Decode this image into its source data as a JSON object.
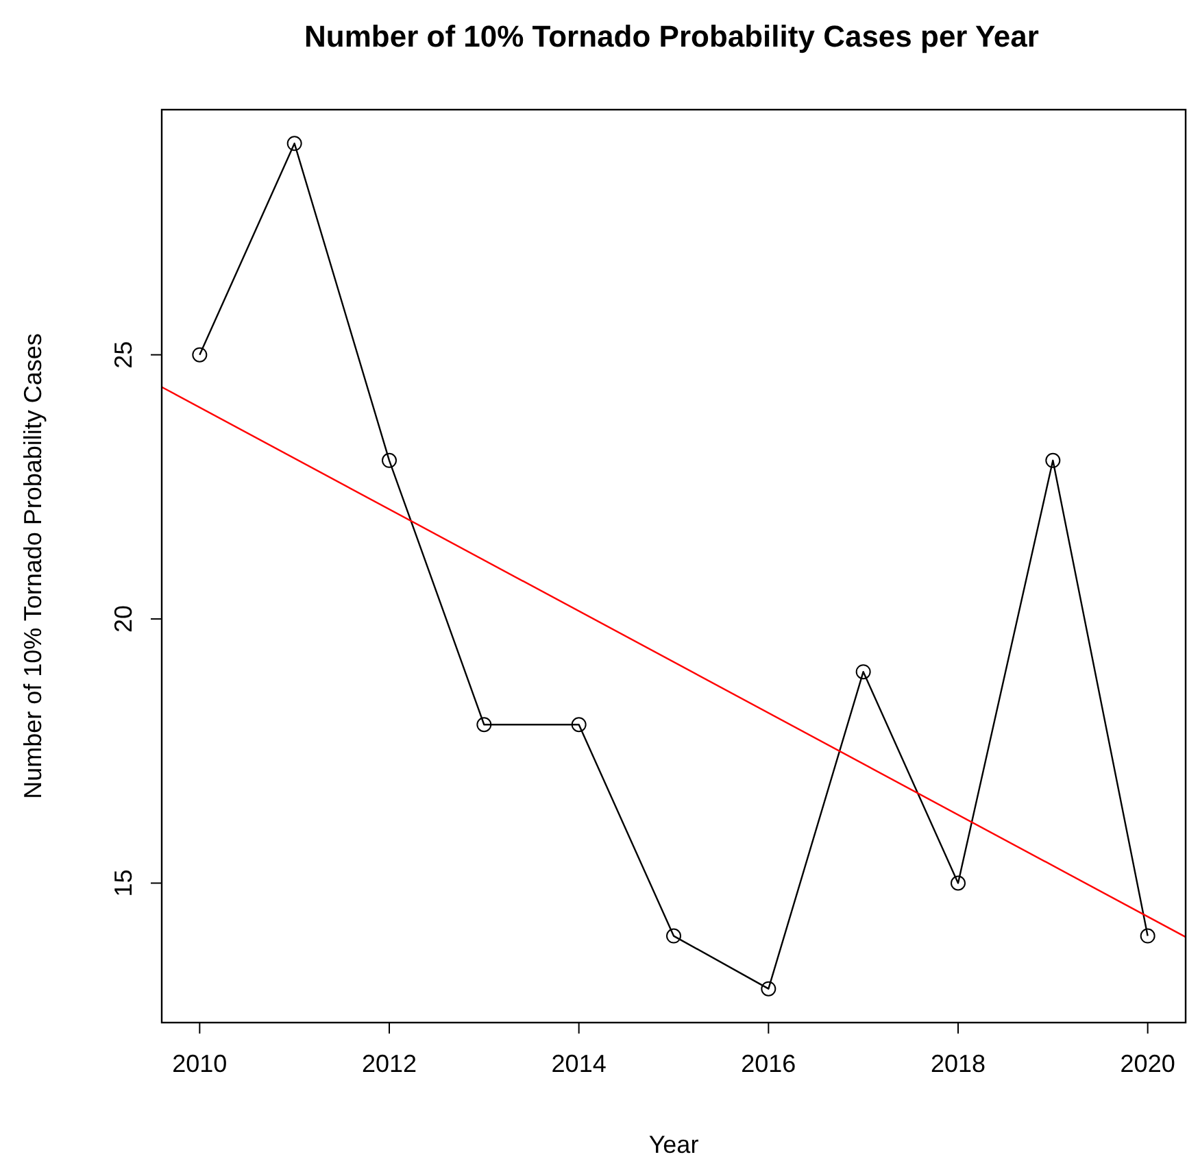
{
  "chart_data": {
    "type": "line",
    "title": "Number of 10% Tornado Probability Cases per Year",
    "xlabel": "Year",
    "ylabel": "Number of 10% Tornado Probability Cases",
    "x": [
      2010,
      2011,
      2012,
      2013,
      2014,
      2015,
      2016,
      2017,
      2018,
      2019,
      2020
    ],
    "series": [
      {
        "color": "#000000",
        "values": [
          25,
          29,
          23,
          18,
          18,
          14,
          13,
          19,
          15,
          23,
          14
        ],
        "marker": "circle"
      },
      {
        "type": "line",
        "color": "#ff0000",
        "x": [
          2009.6,
          2020.4
        ],
        "values": [
          24.39,
          13.98
        ],
        "marker": "none"
      }
    ],
    "xlim": [
      2009.6,
      2020.4
    ],
    "ylim": [
      12.36,
      29.64
    ],
    "xticks": [
      2010,
      2012,
      2014,
      2016,
      2018,
      2020
    ],
    "yticks": [
      15,
      20,
      25
    ],
    "grid": false,
    "line_style": "solid"
  }
}
